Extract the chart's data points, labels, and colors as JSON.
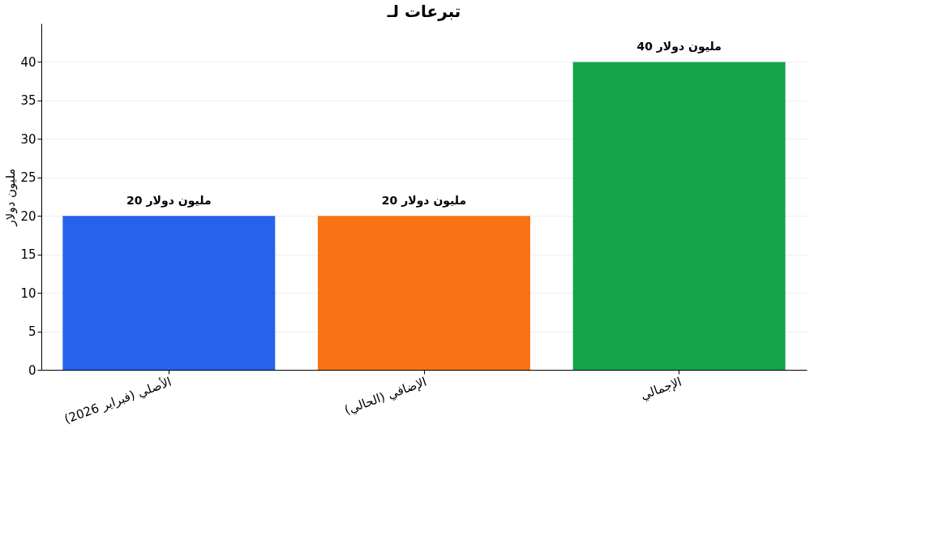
{
  "chart_data": {
    "type": "bar",
    "title": "تبرعات لـ",
    "ylabel": "مليون دولار",
    "categories": [
      "الأصلي (فبراير 2026)",
      "الإضافي (الحالي)",
      "الإجمالي"
    ],
    "values": [
      20,
      20,
      40
    ],
    "colors": [
      "#2563eb",
      "#f97316",
      "#16a34a"
    ],
    "value_labels": [
      "20 مليون دولار",
      "20 مليون دولار",
      "40 مليون دولار"
    ],
    "ylim": [
      0,
      45
    ],
    "yticks": [
      0,
      5,
      10,
      15,
      20,
      25,
      30,
      35,
      40
    ],
    "grid": "y"
  }
}
